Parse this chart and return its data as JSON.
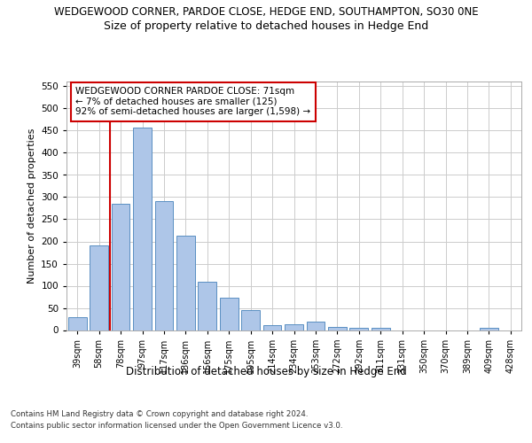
{
  "title_line1": "WEDGEWOOD CORNER, PARDOE CLOSE, HEDGE END, SOUTHAMPTON, SO30 0NE",
  "title_line2": "Size of property relative to detached houses in Hedge End",
  "xlabel": "Distribution of detached houses by size in Hedge End",
  "ylabel": "Number of detached properties",
  "categories": [
    "39sqm",
    "58sqm",
    "78sqm",
    "97sqm",
    "117sqm",
    "136sqm",
    "156sqm",
    "175sqm",
    "195sqm",
    "214sqm",
    "234sqm",
    "253sqm",
    "272sqm",
    "292sqm",
    "311sqm",
    "331sqm",
    "350sqm",
    "370sqm",
    "389sqm",
    "409sqm",
    "428sqm"
  ],
  "values": [
    30,
    192,
    284,
    456,
    291,
    213,
    109,
    73,
    46,
    12,
    13,
    20,
    8,
    6,
    5,
    0,
    0,
    0,
    0,
    5,
    0
  ],
  "bar_color": "#aec6e8",
  "bar_edge_color": "#5a8fc2",
  "vline_color": "#cc0000",
  "annotation_text": "WEDGEWOOD CORNER PARDOE CLOSE: 71sqm\n← 7% of detached houses are smaller (125)\n92% of semi-detached houses are larger (1,598) →",
  "annotation_box_color": "#ffffff",
  "annotation_box_edge": "#cc0000",
  "ylim": [
    0,
    560
  ],
  "yticks": [
    0,
    50,
    100,
    150,
    200,
    250,
    300,
    350,
    400,
    450,
    500,
    550
  ],
  "grid_color": "#cccccc",
  "background_color": "#ffffff",
  "footer_line1": "Contains HM Land Registry data © Crown copyright and database right 2024.",
  "footer_line2": "Contains public sector information licensed under the Open Government Licence v3.0.",
  "title_fontsize": 8.5,
  "subtitle_fontsize": 9,
  "bar_width": 0.85
}
